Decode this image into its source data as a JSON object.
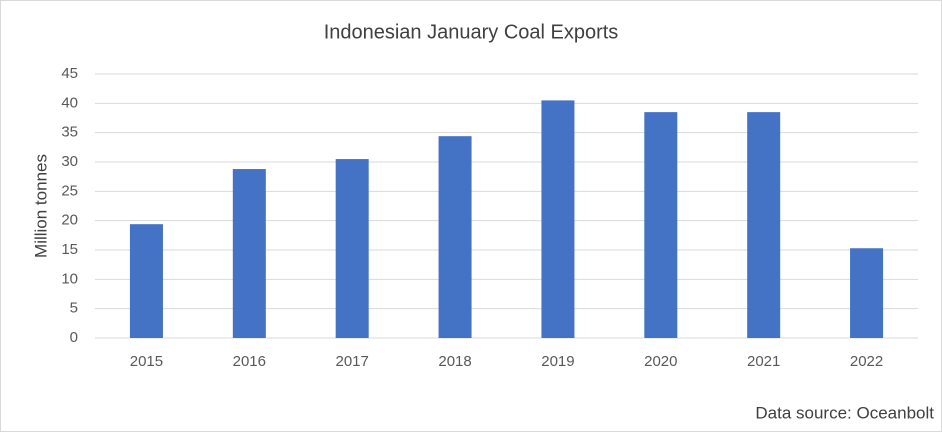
{
  "chart_data": {
    "type": "bar",
    "title": "Indonesian January Coal Exports",
    "y_label": "Million tonnes",
    "annotation": "Data source: Oceanbolt",
    "categories": [
      "2015",
      "2016",
      "2017",
      "2018",
      "2019",
      "2020",
      "2021",
      "2022"
    ],
    "values": [
      19.4,
      28.8,
      30.5,
      34.4,
      40.5,
      38.5,
      38.5,
      15.3
    ],
    "color": "#4472c4",
    "ylim": [
      0,
      45
    ],
    "yticks": [
      0,
      5,
      10,
      15,
      20,
      25,
      30,
      35,
      40,
      45
    ],
    "grid": true
  }
}
